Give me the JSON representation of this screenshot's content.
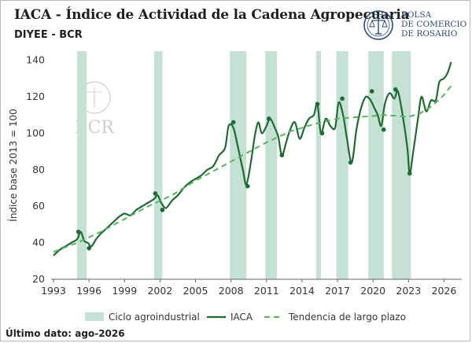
{
  "header": {
    "title": "IACA - Índice de Actividad de la Cadena Agropecuaria",
    "subtitle": "DIYEE - BCR",
    "logo_text": [
      "BOLSA",
      "DE COMERCIO",
      "DE ROSARIO"
    ],
    "watermark": "BCR"
  },
  "footer": {
    "last_data": "Último dato: ago-2026"
  },
  "colors": {
    "iaca_line": "#1d6b33",
    "trend_line": "#59b25f",
    "shade": "#c4e1d3",
    "marker": "#1d6b33",
    "logo": "#2c4a7c"
  },
  "chart_data": {
    "type": "line",
    "title": "IACA - Índice de Actividad de la Cadena Agropecuaria",
    "xlabel": "",
    "ylabel": "Índice base 2013 = 100",
    "xlim": [
      1992.8,
      2027.5
    ],
    "ylim": [
      20,
      145
    ],
    "x_ticks": [
      1993,
      1996,
      1999,
      2002,
      2005,
      2008,
      2011,
      2014,
      2017,
      2020,
      2023,
      2026
    ],
    "y_ticks": [
      20,
      40,
      60,
      80,
      100,
      120,
      140
    ],
    "grid": false,
    "legend": {
      "position": "bottom",
      "entries": [
        "Ciclo agroindustrial",
        "IACA",
        "Tendencia de largo plazo"
      ]
    },
    "shaded_periods": [
      [
        1995.0,
        1995.8
      ],
      [
        2001.5,
        2002.2
      ],
      [
        2007.9,
        2009.3
      ],
      [
        2010.9,
        2011.9
      ],
      [
        2015.2,
        2015.6
      ],
      [
        2016.9,
        2017.9
      ],
      [
        2019.6,
        2020.9
      ],
      [
        2021.6,
        2023.2
      ]
    ],
    "series": [
      {
        "name": "IACA",
        "style": "solid",
        "x": [
          1993.0,
          1993.5,
          1994.0,
          1994.5,
          1995.0,
          1995.3,
          1995.6,
          1995.9,
          1996.2,
          1996.6,
          1997.0,
          1997.5,
          1998.0,
          1998.5,
          1999.0,
          1999.5,
          2000.0,
          2000.5,
          2001.0,
          2001.5,
          2001.8,
          2002.1,
          2002.5,
          2003.0,
          2003.5,
          2004.0,
          2004.5,
          2005.0,
          2005.5,
          2006.0,
          2006.5,
          2007.0,
          2007.5,
          2007.8,
          2008.2,
          2008.6,
          2009.0,
          2009.3,
          2009.7,
          2010.0,
          2010.3,
          2010.6,
          2011.0,
          2011.3,
          2011.7,
          2012.0,
          2012.3,
          2012.7,
          2013.0,
          2013.4,
          2013.8,
          2014.2,
          2014.6,
          2015.0,
          2015.3,
          2015.6,
          2016.0,
          2016.4,
          2016.8,
          2017.1,
          2017.5,
          2017.8,
          2018.2,
          2018.6,
          2019.0,
          2019.4,
          2019.8,
          2020.1,
          2020.4,
          2020.7,
          2021.0,
          2021.4,
          2021.8,
          2022.1,
          2022.5,
          2022.9,
          2023.1,
          2023.4,
          2023.8,
          2024.1,
          2024.5,
          2024.9,
          2025.3,
          2025.6,
          2026.0,
          2026.3,
          2026.6
        ],
        "values": [
          33,
          36,
          38,
          40,
          42,
          46,
          41,
          40,
          38,
          42,
          45,
          48,
          51,
          54,
          56,
          55,
          58,
          60,
          62,
          64,
          66,
          62,
          59,
          63,
          66,
          70,
          73,
          75,
          77,
          80,
          82,
          88,
          92,
          104,
          103,
          92,
          80,
          72,
          85,
          98,
          106,
          100,
          104,
          108,
          103,
          98,
          88,
          96,
          102,
          106,
          97,
          103,
          108,
          110,
          116,
          100,
          108,
          104,
          103,
          117,
          109,
          97,
          84,
          102,
          114,
          120,
          118,
          114,
          110,
          104,
          116,
          122,
          119,
          123,
          110,
          92,
          78,
          90,
          108,
          120,
          112,
          118,
          118,
          128,
          130,
          133,
          139
        ]
      },
      {
        "name": "Tendencia de largo plazo",
        "style": "dashed",
        "x": [
          1993,
          1995,
          1997,
          1999,
          2001,
          2003,
          2005,
          2007,
          2009,
          2011,
          2013,
          2015,
          2017,
          2019,
          2021,
          2023,
          2024,
          2025,
          2026,
          2026.6
        ],
        "values": [
          35,
          40,
          46,
          53,
          60,
          66,
          74,
          81,
          88,
          95,
          101,
          105,
          108,
          109,
          110,
          109,
          111,
          115,
          121,
          126
        ]
      }
    ],
    "highlight_points": {
      "x": [
        1995.1,
        1996.0,
        2001.6,
        2002.2,
        2008.2,
        2009.4,
        2011.2,
        2012.3,
        2015.3,
        2015.7,
        2017.4,
        2018.1,
        2019.9,
        2020.9,
        2021.9,
        2023.1
      ],
      "values": [
        46,
        37,
        67,
        58,
        106,
        71,
        108,
        88,
        116,
        100,
        119,
        84,
        123,
        102,
        124,
        78
      ]
    }
  }
}
